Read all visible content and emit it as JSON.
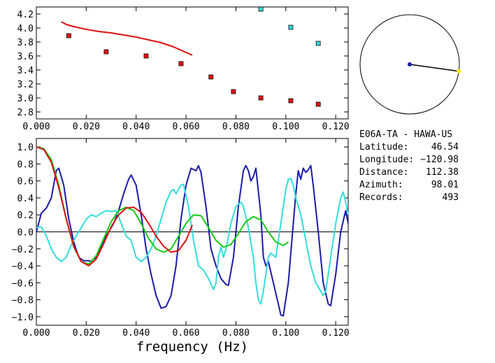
{
  "station": {
    "title": "E06A-TA - HAWA-US",
    "lines": [
      {
        "label": "Latitude:",
        "value": "46.54"
      },
      {
        "label": "Longitude:",
        "value": "-120.98"
      },
      {
        "label": "Distance:",
        "value": "112.38"
      },
      {
        "label": "Azimuth:",
        "value": "98.01"
      },
      {
        "label": "Records:",
        "value": "493"
      }
    ]
  },
  "chart_data": [
    {
      "type": "scatter",
      "title": "",
      "xlabel": "",
      "ylabel": "",
      "xlim": [
        0.0,
        0.125
      ],
      "ylim": [
        2.7,
        4.3
      ],
      "xticks": [
        "0.000",
        "0.020",
        "0.040",
        "0.060",
        "0.080",
        "0.100",
        "0.120"
      ],
      "yticks": [
        "2.8",
        "3.0",
        "3.2",
        "3.4",
        "3.6",
        "3.8",
        "4.0",
        "4.2"
      ],
      "grid": false,
      "series": [
        {
          "marker": "square",
          "color": "#ee1111",
          "points": [
            [
              0.013,
              3.89
            ],
            [
              0.028,
              3.66
            ],
            [
              0.044,
              3.6
            ],
            [
              0.058,
              3.49
            ],
            [
              0.07,
              3.3
            ],
            [
              0.079,
              3.09
            ],
            [
              0.09,
              3.0
            ],
            [
              0.102,
              2.96
            ],
            [
              0.113,
              2.91
            ]
          ]
        },
        {
          "marker": "square",
          "color": "#33dddd",
          "points": [
            [
              0.09,
              4.27
            ],
            [
              0.102,
              4.01
            ],
            [
              0.113,
              3.78
            ]
          ]
        },
        {
          "line": true,
          "color": "#dd1111",
          "points": [
            [
              0.01,
              4.09
            ],
            [
              0.012,
              4.05
            ],
            [
              0.015,
              4.02
            ],
            [
              0.02,
              3.98
            ],
            [
              0.025,
              3.95
            ],
            [
              0.03,
              3.93
            ],
            [
              0.035,
              3.9
            ],
            [
              0.04,
              3.87
            ],
            [
              0.045,
              3.83
            ],
            [
              0.05,
              3.79
            ],
            [
              0.055,
              3.73
            ],
            [
              0.06,
              3.65
            ],
            [
              0.0625,
              3.61
            ]
          ]
        }
      ]
    },
    {
      "type": "line",
      "title": "",
      "xlabel": "frequency (Hz)",
      "ylabel": "",
      "xlim": [
        0.0,
        0.125
      ],
      "ylim": [
        -1.1,
        1.1
      ],
      "xticks": [
        "0.000",
        "0.020",
        "0.040",
        "0.060",
        "0.080",
        "0.100",
        "0.120"
      ],
      "yticks": [
        "-1.0",
        "-0.8",
        "-0.6",
        "-0.4",
        "-0.2",
        "0.0",
        "0.2",
        "0.4",
        "0.6",
        "0.8",
        "1.0"
      ],
      "zero_line": true,
      "grid": false,
      "series": [
        {
          "color": "#1a1aaa",
          "points": [
            [
              0.0,
              0.0
            ],
            [
              0.002,
              0.22
            ],
            [
              0.004,
              0.28
            ],
            [
              0.006,
              0.4
            ],
            [
              0.008,
              0.72
            ],
            [
              0.009,
              0.75
            ],
            [
              0.011,
              0.55
            ],
            [
              0.013,
              0.15
            ],
            [
              0.015,
              -0.12
            ],
            [
              0.017,
              -0.3
            ],
            [
              0.019,
              -0.34
            ],
            [
              0.021,
              -0.34
            ],
            [
              0.023,
              -0.35
            ],
            [
              0.025,
              -0.25
            ],
            [
              0.027,
              -0.1
            ],
            [
              0.029,
              0.0
            ],
            [
              0.031,
              0.1
            ],
            [
              0.033,
              0.25
            ],
            [
              0.035,
              0.45
            ],
            [
              0.037,
              0.62
            ],
            [
              0.038,
              0.67
            ],
            [
              0.04,
              0.55
            ],
            [
              0.042,
              0.2
            ],
            [
              0.044,
              -0.2
            ],
            [
              0.046,
              -0.5
            ],
            [
              0.048,
              -0.75
            ],
            [
              0.05,
              -0.9
            ],
            [
              0.052,
              -0.88
            ],
            [
              0.054,
              -0.75
            ],
            [
              0.056,
              -0.4
            ],
            [
              0.058,
              0.15
            ],
            [
              0.06,
              0.55
            ],
            [
              0.062,
              0.75
            ],
            [
              0.064,
              0.72
            ],
            [
              0.065,
              0.78
            ],
            [
              0.066,
              0.7
            ],
            [
              0.068,
              0.3
            ],
            [
              0.07,
              -0.2
            ],
            [
              0.072,
              -0.4
            ],
            [
              0.074,
              -0.55
            ],
            [
              0.076,
              -0.62
            ],
            [
              0.077,
              -0.63
            ],
            [
              0.079,
              -0.3
            ],
            [
              0.081,
              0.3
            ],
            [
              0.083,
              0.72
            ],
            [
              0.084,
              0.78
            ],
            [
              0.085,
              0.72
            ],
            [
              0.086,
              0.6
            ],
            [
              0.087,
              0.65
            ],
            [
              0.088,
              0.75
            ],
            [
              0.09,
              0.2
            ],
            [
              0.091,
              -0.3
            ],
            [
              0.092,
              -0.4
            ],
            [
              0.093,
              -0.35
            ],
            [
              0.095,
              -0.6
            ],
            [
              0.097,
              -0.85
            ],
            [
              0.098,
              -0.98
            ],
            [
              0.099,
              -0.99
            ],
            [
              0.101,
              -0.6
            ],
            [
              0.103,
              0.1
            ],
            [
              0.104,
              0.45
            ],
            [
              0.105,
              0.72
            ],
            [
              0.106,
              0.62
            ],
            [
              0.107,
              0.75
            ],
            [
              0.108,
              0.7
            ],
            [
              0.109,
              0.73
            ],
            [
              0.11,
              0.78
            ],
            [
              0.111,
              0.55
            ],
            [
              0.113,
              0.0
            ],
            [
              0.115,
              -0.6
            ],
            [
              0.117,
              -0.85
            ],
            [
              0.118,
              -0.87
            ],
            [
              0.12,
              -0.5
            ],
            [
              0.122,
              0.0
            ],
            [
              0.124,
              0.25
            ],
            [
              0.125,
              0.1
            ]
          ]
        },
        {
          "color": "#33dddd",
          "points": [
            [
              0.0,
              0.05
            ],
            [
              0.002,
              0.06
            ],
            [
              0.004,
              -0.05
            ],
            [
              0.006,
              -0.2
            ],
            [
              0.008,
              -0.3
            ],
            [
              0.01,
              -0.35
            ],
            [
              0.012,
              -0.3
            ],
            [
              0.014,
              -0.15
            ],
            [
              0.016,
              -0.05
            ],
            [
              0.018,
              0.05
            ],
            [
              0.02,
              0.15
            ],
            [
              0.022,
              0.2
            ],
            [
              0.024,
              0.18
            ],
            [
              0.026,
              0.22
            ],
            [
              0.028,
              0.25
            ],
            [
              0.03,
              0.24
            ],
            [
              0.032,
              0.25
            ],
            [
              0.034,
              0.1
            ],
            [
              0.036,
              -0.05
            ],
            [
              0.038,
              -0.1
            ],
            [
              0.04,
              -0.3
            ],
            [
              0.042,
              -0.35
            ],
            [
              0.044,
              -0.3
            ],
            [
              0.046,
              -0.2
            ],
            [
              0.048,
              -0.05
            ],
            [
              0.05,
              0.15
            ],
            [
              0.052,
              0.35
            ],
            [
              0.054,
              0.48
            ],
            [
              0.055,
              0.5
            ],
            [
              0.056,
              0.45
            ],
            [
              0.058,
              0.55
            ],
            [
              0.059,
              0.56
            ],
            [
              0.061,
              0.3
            ],
            [
              0.063,
              -0.1
            ],
            [
              0.065,
              -0.4
            ],
            [
              0.067,
              -0.45
            ],
            [
              0.069,
              -0.55
            ],
            [
              0.071,
              -0.68
            ],
            [
              0.072,
              -0.6
            ],
            [
              0.073,
              -0.3
            ],
            [
              0.074,
              -0.18
            ],
            [
              0.075,
              -0.3
            ],
            [
              0.076,
              -0.2
            ],
            [
              0.078,
              0.1
            ],
            [
              0.08,
              0.3
            ],
            [
              0.082,
              0.35
            ],
            [
              0.083,
              0.3
            ],
            [
              0.085,
              0.05
            ],
            [
              0.087,
              -0.3
            ],
            [
              0.088,
              -0.6
            ],
            [
              0.089,
              -0.8
            ],
            [
              0.09,
              -0.85
            ],
            [
              0.091,
              -0.7
            ],
            [
              0.093,
              -0.3
            ],
            [
              0.094,
              -0.25
            ],
            [
              0.096,
              -0.3
            ],
            [
              0.098,
              0.1
            ],
            [
              0.1,
              0.5
            ],
            [
              0.101,
              0.62
            ],
            [
              0.102,
              0.63
            ],
            [
              0.103,
              0.55
            ],
            [
              0.104,
              0.4
            ],
            [
              0.106,
              0.2
            ],
            [
              0.108,
              -0.1
            ],
            [
              0.11,
              -0.4
            ],
            [
              0.112,
              -0.6
            ],
            [
              0.114,
              -0.7
            ],
            [
              0.115,
              -0.75
            ],
            [
              0.116,
              -0.7
            ],
            [
              0.118,
              -0.3
            ],
            [
              0.12,
              0.1
            ],
            [
              0.122,
              0.4
            ],
            [
              0.123,
              0.47
            ],
            [
              0.124,
              0.35
            ],
            [
              0.125,
              0.2
            ]
          ]
        },
        {
          "color": "#11cc11",
          "points": [
            [
              0.0,
              1.0
            ],
            [
              0.003,
              0.98
            ],
            [
              0.006,
              0.85
            ],
            [
              0.009,
              0.55
            ],
            [
              0.012,
              0.15
            ],
            [
              0.015,
              -0.18
            ],
            [
              0.018,
              -0.35
            ],
            [
              0.021,
              -0.38
            ],
            [
              0.024,
              -0.28
            ],
            [
              0.027,
              -0.08
            ],
            [
              0.03,
              0.12
            ],
            [
              0.033,
              0.25
            ],
            [
              0.036,
              0.29
            ],
            [
              0.039,
              0.25
            ],
            [
              0.042,
              0.1
            ],
            [
              0.045,
              -0.08
            ],
            [
              0.048,
              -0.2
            ],
            [
              0.051,
              -0.24
            ],
            [
              0.054,
              -0.2
            ],
            [
              0.057,
              -0.05
            ],
            [
              0.06,
              0.1
            ],
            [
              0.063,
              0.2
            ],
            [
              0.066,
              0.19
            ],
            [
              0.069,
              0.05
            ],
            [
              0.072,
              -0.1
            ],
            [
              0.075,
              -0.18
            ],
            [
              0.078,
              -0.15
            ],
            [
              0.081,
              -0.02
            ],
            [
              0.084,
              0.12
            ],
            [
              0.087,
              0.18
            ],
            [
              0.09,
              0.14
            ],
            [
              0.093,
              0.0
            ],
            [
              0.096,
              -0.12
            ],
            [
              0.099,
              -0.16
            ],
            [
              0.101,
              -0.12
            ]
          ]
        },
        {
          "color": "#dd1111",
          "points": [
            [
              0.0,
              1.0
            ],
            [
              0.003,
              0.97
            ],
            [
              0.006,
              0.82
            ],
            [
              0.009,
              0.52
            ],
            [
              0.012,
              0.15
            ],
            [
              0.015,
              -0.17
            ],
            [
              0.018,
              -0.35
            ],
            [
              0.021,
              -0.4
            ],
            [
              0.024,
              -0.32
            ],
            [
              0.027,
              -0.14
            ],
            [
              0.03,
              0.06
            ],
            [
              0.033,
              0.2
            ],
            [
              0.036,
              0.28
            ],
            [
              0.039,
              0.29
            ],
            [
              0.042,
              0.23
            ],
            [
              0.045,
              0.1
            ],
            [
              0.048,
              -0.05
            ],
            [
              0.051,
              -0.17
            ],
            [
              0.054,
              -0.24
            ],
            [
              0.057,
              -0.22
            ],
            [
              0.06,
              -0.1
            ],
            [
              0.0625,
              0.08
            ]
          ]
        }
      ]
    }
  ],
  "azimuth_plot": {
    "azimuth_deg": 98.01,
    "center_color": "#1a1aaa",
    "line_color": "#000000",
    "end_color": "#eeee00"
  }
}
